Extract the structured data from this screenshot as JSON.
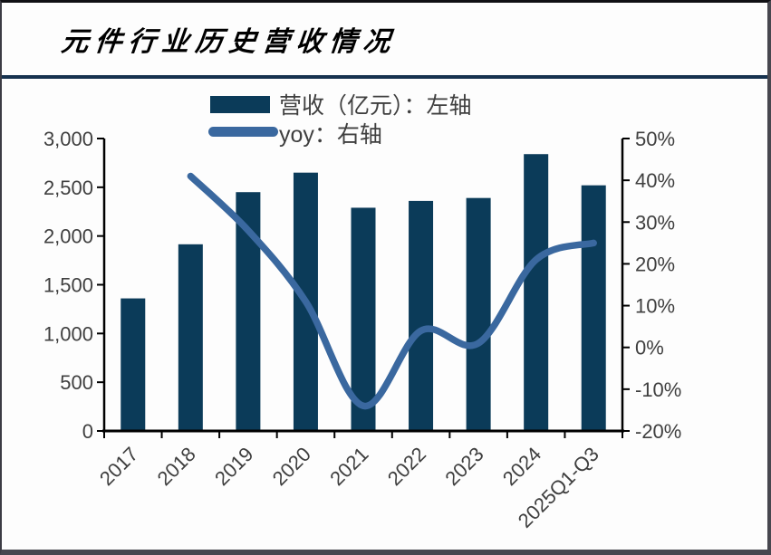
{
  "header": {
    "title": "元件行业历史营收情况"
  },
  "colors": {
    "bar": "#0b3b59",
    "line": "#3a689f",
    "title_rule": "#16324f",
    "axis_text": "#3f3f3f",
    "axis_line": "#000000"
  },
  "chart_data": {
    "type": "bar+line-combo",
    "title": "元件行业历史营收情况",
    "categories": [
      "2017",
      "2018",
      "2019",
      "2020",
      "2021",
      "2022",
      "2023",
      "2024",
      "2025Q1-Q3"
    ],
    "series": [
      {
        "name": "营收（亿元）：左轴",
        "type": "bar",
        "axis": "left",
        "values": [
          1360,
          1915,
          2450,
          2650,
          2290,
          2360,
          2390,
          2840,
          2520
        ]
      },
      {
        "name": "yoy：右轴",
        "type": "line",
        "axis": "right",
        "values": [
          null,
          41,
          28,
          11,
          -14,
          4,
          1,
          21,
          25
        ]
      }
    ],
    "left_axis": {
      "min": 0,
      "max": 3000,
      "step": 500,
      "tick_labels": [
        "3,000",
        "2,500",
        "2,000",
        "1,500",
        "1,000",
        "500",
        "0"
      ]
    },
    "right_axis": {
      "min": -20,
      "max": 50,
      "step": 10,
      "tick_labels": [
        "50%",
        "40%",
        "30%",
        "20%",
        "10%",
        "0%",
        "-10%",
        "-20%"
      ]
    },
    "legend_position": "top-center",
    "grid": "off"
  }
}
